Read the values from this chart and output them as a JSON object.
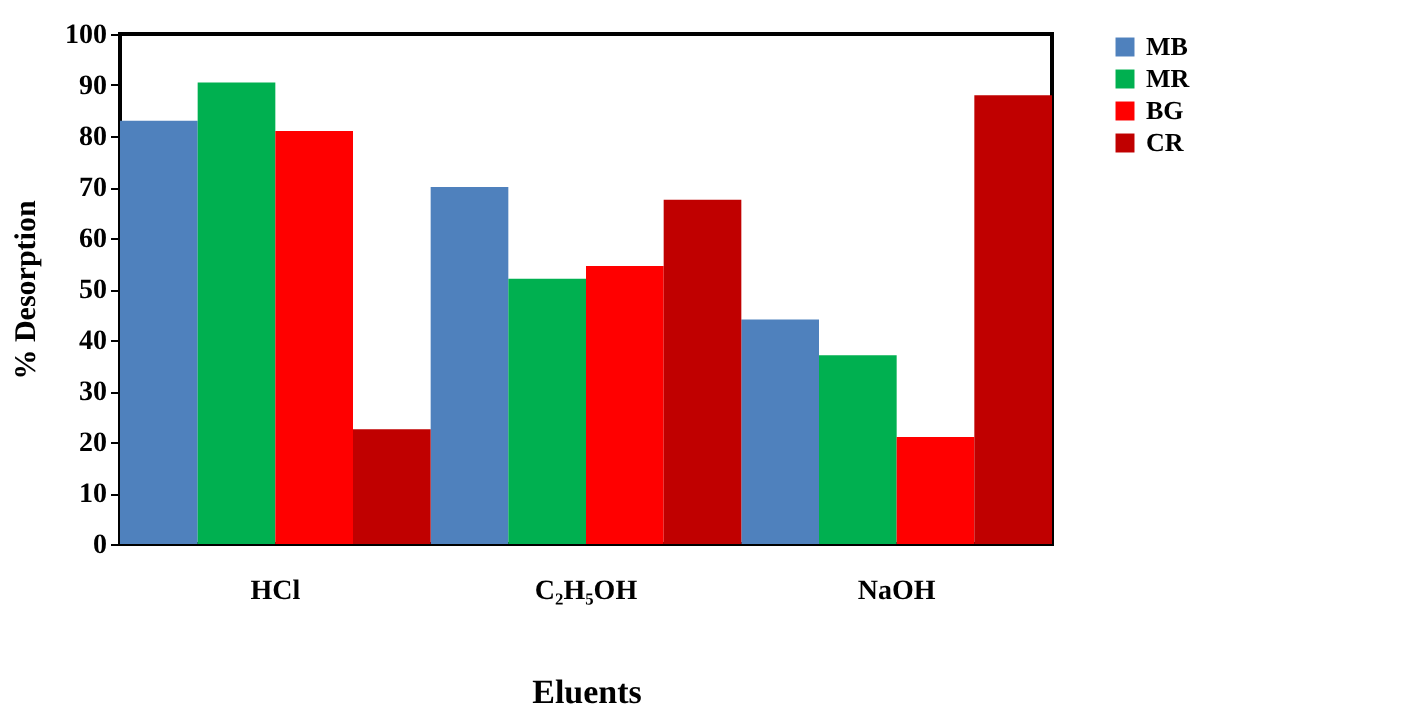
{
  "chart_data": {
    "type": "bar",
    "xlabel": "Eluents",
    "ylabel": "% Desorption",
    "categories": [
      "HCl",
      "C₂H₅OH",
      "NaOH"
    ],
    "series": [
      {
        "name": "MB",
        "color": "#4f81bd",
        "values": [
          83,
          70,
          44
        ]
      },
      {
        "name": "MR",
        "color": "#00b050",
        "values": [
          90.5,
          52,
          37
        ]
      },
      {
        "name": "BG",
        "color": "#ff0000",
        "values": [
          81,
          54.5,
          21
        ]
      },
      {
        "name": "CR",
        "color": "#c00000",
        "values": [
          22.5,
          67.5,
          88
        ]
      }
    ],
    "ylim": [
      0,
      100
    ],
    "yticks": [
      0,
      10,
      20,
      30,
      40,
      50,
      60,
      70,
      80,
      90,
      100
    ],
    "grid": false,
    "legend": "right"
  }
}
